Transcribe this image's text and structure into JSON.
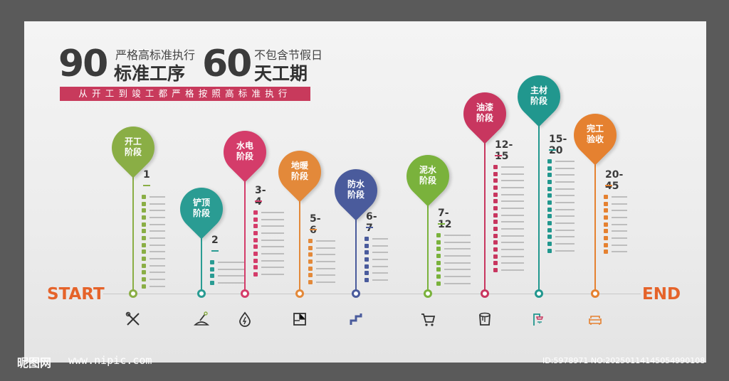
{
  "headline": {
    "num1": "90",
    "small1": "严格高标准执行",
    "big1": "标准工序",
    "num2": "60",
    "small2": "不包含节假日",
    "big2": "天工期",
    "banner": "从开工到竣工都严格按照高标准执行"
  },
  "timeline": {
    "start": "START",
    "end": "END"
  },
  "stages": [
    {
      "line1": "开工",
      "line2": "阶段",
      "days": "1",
      "color": "#8aae45",
      "icon": "tools-icon",
      "items": [
        "",
        "",
        "",
        "",
        "",
        "",
        "",
        "",
        "",
        "",
        "",
        "",
        "",
        ""
      ]
    },
    {
      "line1": "铲顶",
      "line2": "阶段",
      "days": "2",
      "color": "#2a9c93",
      "icon": "shovel-icon",
      "items": [
        "",
        "",
        "",
        ""
      ]
    },
    {
      "line1": "水电",
      "line2": "阶段",
      "days": "3-4",
      "color": "#d43c6a",
      "icon": "water-drop-icon",
      "items": [
        "",
        "",
        "",
        "",
        "",
        "",
        "",
        "",
        "",
        ""
      ]
    },
    {
      "line1": "地暖",
      "line2": "阶段",
      "days": "5-6",
      "color": "#e3893a",
      "icon": "floor-heating-icon",
      "items": [
        "",
        "",
        "",
        "",
        "",
        "",
        ""
      ]
    },
    {
      "line1": "防水",
      "line2": "阶段",
      "days": "6-7",
      "color": "#4a5b9c",
      "icon": "pipe-icon",
      "items": [
        "",
        "",
        "",
        "",
        "",
        "",
        ""
      ]
    },
    {
      "line1": "泥水",
      "line2": "阶段",
      "days": "7-12",
      "color": "#7ab23c",
      "icon": "cart-icon",
      "items": [
        "",
        "",
        "",
        "",
        "",
        "",
        "",
        ""
      ]
    },
    {
      "line1": "油漆",
      "line2": "阶段",
      "days": "12-15",
      "color": "#c8365f",
      "icon": "paint-bucket-icon",
      "items": [
        "",
        "",
        "",
        "",
        "",
        "",
        "",
        "",
        "",
        "",
        "",
        "",
        "",
        "",
        "",
        ""
      ]
    },
    {
      "line1": "主材",
      "line2": "阶段",
      "days": "15-20",
      "color": "#21978e",
      "icon": "shower-icon",
      "items": [
        "",
        "",
        "",
        "",
        "",
        "",
        "",
        "",
        "",
        "",
        "",
        "",
        "",
        ""
      ]
    },
    {
      "line1": "完工",
      "line2": "验收",
      "days": "20-45",
      "color": "#e58130",
      "icon": "sofa-icon",
      "items": [
        "",
        "",
        "",
        "",
        "",
        "",
        "",
        "",
        ""
      ]
    }
  ],
  "watermark": {
    "brand": "昵图网",
    "url": "www.nipic.com",
    "id": "ID:5978971 NO:20250114145054990108"
  }
}
